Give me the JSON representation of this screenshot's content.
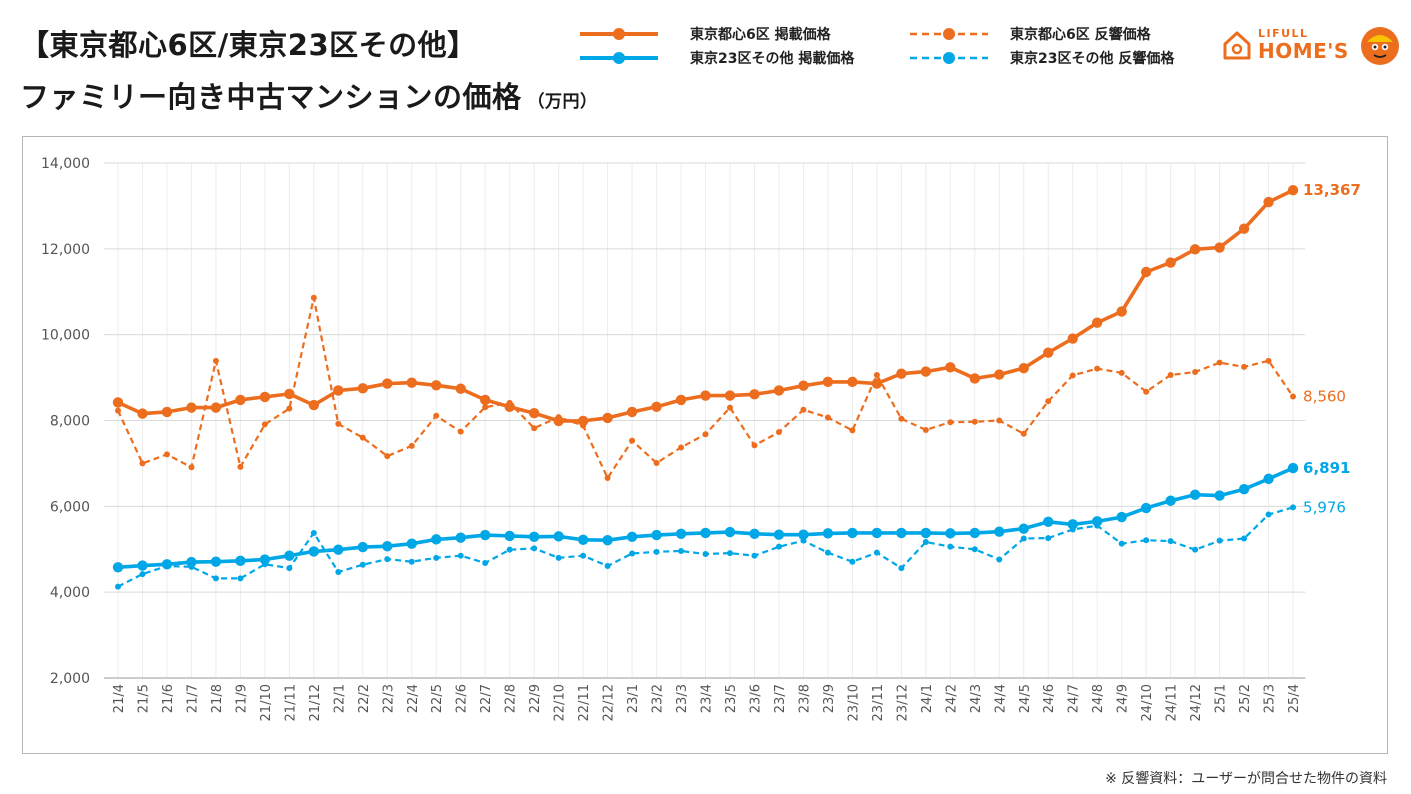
{
  "header": {
    "title_line1": "【東京都心6区/東京23区その他】",
    "title_line2": "ファミリー向き中古マンションの価格",
    "unit": "（万円）"
  },
  "legend": [
    {
      "label": "東京都心6区 掲載価格",
      "color": "#ED6D1F",
      "dashed": false
    },
    {
      "label": "東京23区その他 掲載価格",
      "color": "#00A7E6",
      "dashed": false
    },
    {
      "label": "東京都心6区 反響価格",
      "color": "#ED6D1F",
      "dashed": true
    },
    {
      "label": "東京23区その他 反響価格",
      "color": "#00A7E6",
      "dashed": true
    }
  ],
  "logo": {
    "top_text": "LIFULL",
    "main_text": "HOME'S",
    "icon": "house-icon"
  },
  "footnote": "※ 反響資料：ユーザーが問合せた物件の資料",
  "chart_data": {
    "type": "line",
    "categories": [
      "21/4",
      "21/5",
      "21/6",
      "21/7",
      "21/8",
      "21/9",
      "21/10",
      "21/11",
      "21/12",
      "22/1",
      "22/2",
      "22/3",
      "22/4",
      "22/5",
      "22/6",
      "22/7",
      "22/8",
      "22/9",
      "22/10",
      "22/11",
      "22/12",
      "23/1",
      "23/2",
      "23/3",
      "23/4",
      "23/5",
      "23/6",
      "23/7",
      "23/8",
      "23/9",
      "23/10",
      "23/11",
      "23/12",
      "24/1",
      "24/2",
      "24/3",
      "24/4",
      "24/5",
      "24/6",
      "24/7",
      "24/8",
      "24/9",
      "24/10",
      "24/11",
      "24/12",
      "25/1",
      "25/2",
      "25/3",
      "25/4"
    ],
    "ylim": [
      2000,
      14000
    ],
    "yticks": [
      "2,000",
      "4,000",
      "6,000",
      "8,000",
      "10,000",
      "12,000",
      "14,000"
    ],
    "grid": true,
    "series": [
      {
        "name": "東京都心6区 掲載価格",
        "color": "#ED6D1F",
        "dashed": false,
        "end_label": "13,367",
        "values": [
          8420,
          8160,
          8200,
          8300,
          8300,
          8480,
          8550,
          8620,
          8360,
          8700,
          8750,
          8860,
          8880,
          8820,
          8740,
          8480,
          8320,
          8170,
          7990,
          7990,
          8060,
          8200,
          8320,
          8480,
          8580,
          8580,
          8610,
          8700,
          8810,
          8900,
          8900,
          8860,
          9090,
          9140,
          9240,
          8980,
          9070,
          9220,
          9580,
          9910,
          10280,
          10540,
          11460,
          11680,
          11990,
          12030,
          12470,
          13090,
          13367
        ]
      },
      {
        "name": "東京23区その他 掲載価格",
        "color": "#00A7E6",
        "dashed": false,
        "end_label": "6,891",
        "values": [
          4580,
          4620,
          4650,
          4700,
          4710,
          4730,
          4760,
          4850,
          4950,
          4990,
          5050,
          5070,
          5130,
          5230,
          5270,
          5330,
          5310,
          5290,
          5300,
          5220,
          5210,
          5290,
          5330,
          5360,
          5380,
          5400,
          5360,
          5340,
          5340,
          5370,
          5380,
          5380,
          5380,
          5380,
          5370,
          5380,
          5410,
          5480,
          5640,
          5580,
          5650,
          5750,
          5960,
          6130,
          6270,
          6250,
          6400,
          6640,
          6891
        ]
      },
      {
        "name": "東京都心6区 反響価格",
        "color": "#ED6D1F",
        "dashed": true,
        "end_label": "8,560",
        "values": [
          8230,
          7000,
          7210,
          6910,
          9390,
          6920,
          7910,
          8280,
          10860,
          7920,
          7600,
          7170,
          7410,
          8110,
          7740,
          8310,
          8410,
          7820,
          8080,
          7880,
          6660,
          7530,
          7010,
          7370,
          7680,
          8300,
          7420,
          7730,
          8250,
          8070,
          7770,
          9060,
          8040,
          7780,
          7960,
          7970,
          8000,
          7690,
          8450,
          9050,
          9210,
          9110,
          8670,
          9060,
          9130,
          9350,
          9250,
          9390,
          8560
        ]
      },
      {
        "name": "東京23区その他 反響価格",
        "color": "#00A7E6",
        "dashed": true,
        "end_label": "5,976",
        "values": [
          4130,
          4420,
          4610,
          4590,
          4320,
          4320,
          4650,
          4560,
          5380,
          4470,
          4640,
          4770,
          4710,
          4800,
          4850,
          4680,
          4990,
          5020,
          4800,
          4850,
          4610,
          4900,
          4940,
          4960,
          4890,
          4910,
          4850,
          5060,
          5200,
          4920,
          4710,
          4920,
          4560,
          5170,
          5060,
          5000,
          4760,
          5250,
          5260,
          5460,
          5550,
          5130,
          5210,
          5190,
          4990,
          5200,
          5250,
          5810,
          5976
        ]
      }
    ]
  }
}
